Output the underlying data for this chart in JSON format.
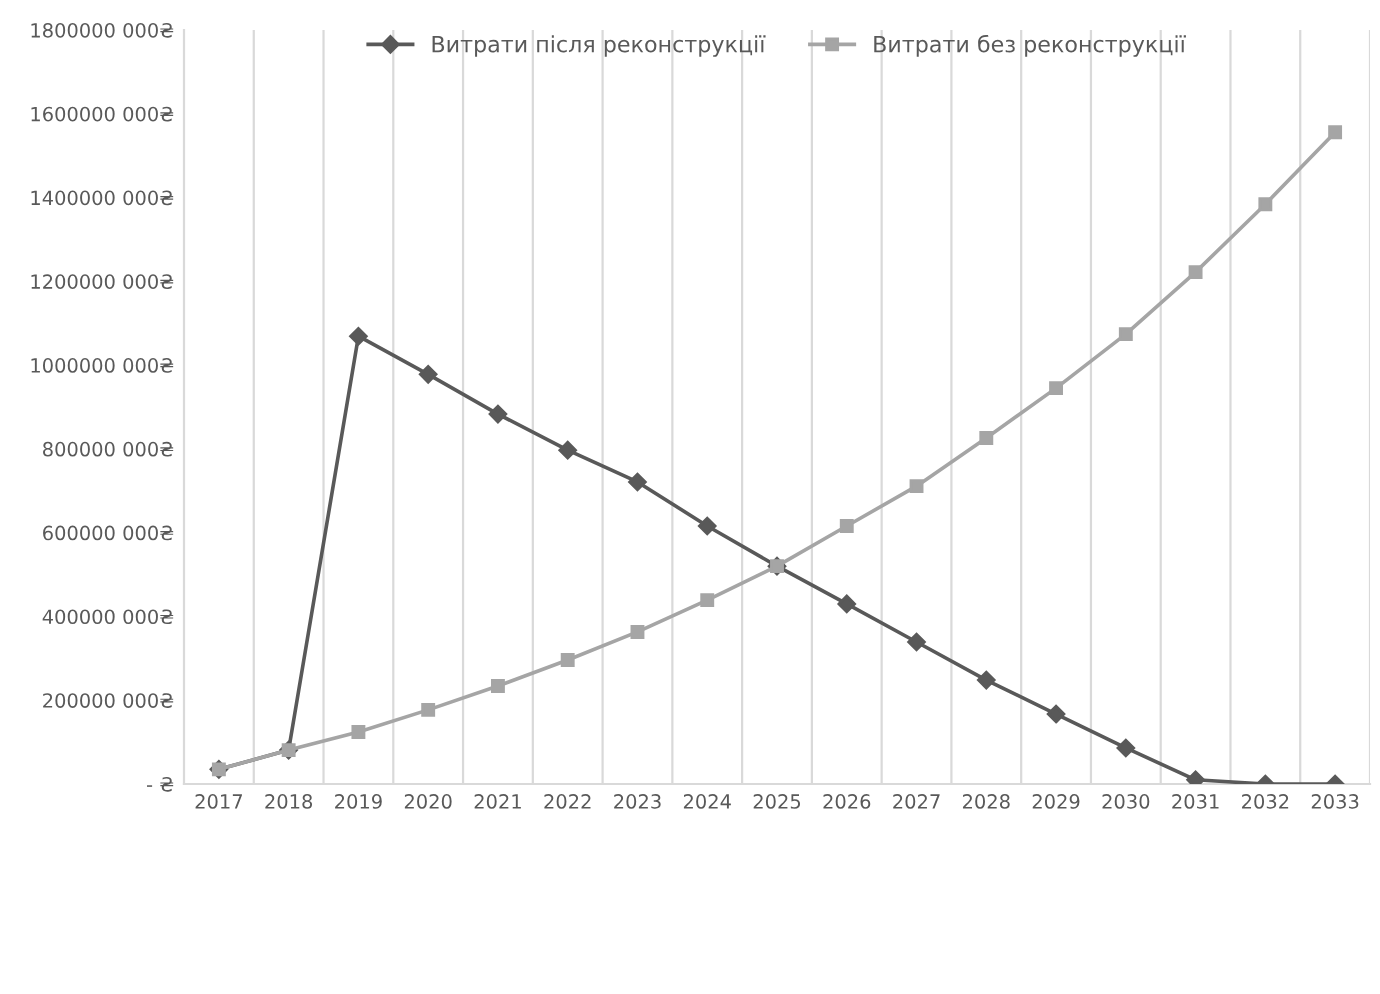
{
  "chart_data": {
    "type": "line",
    "categories": [
      "2017",
      "2018",
      "2019",
      "2020",
      "2021",
      "2022",
      "2023",
      "2024",
      "2025",
      "2026",
      "2027",
      "2028",
      "2029",
      "2030",
      "2031",
      "2032",
      "2033"
    ],
    "series": [
      {
        "name": "Витрати після реконструкції",
        "color": "#595959",
        "marker": "diamond",
        "values": [
          35000000,
          81000000,
          1069000000,
          978000000,
          883000000,
          797000000,
          721000000,
          616000000,
          520000000,
          430000000,
          339000000,
          248000000,
          167000000,
          86000000,
          10000000,
          0,
          0
        ]
      },
      {
        "name": "Витрати без реконструкції",
        "color": "#a5a5a5",
        "marker": "square",
        "values": [
          35000000,
          81000000,
          124000000,
          177000000,
          234000000,
          296000000,
          363000000,
          439000000,
          520000000,
          616000000,
          711000000,
          826000000,
          945000000,
          1074000000,
          1222000000,
          1384000000,
          1556000000
        ]
      }
    ],
    "ylim": [
      0,
      1800000000
    ],
    "yticks": [
      {
        "value": 0,
        "label": " - ₴"
      },
      {
        "value": 200000000,
        "label": "200000 000₴"
      },
      {
        "value": 400000000,
        "label": "400000 000₴"
      },
      {
        "value": 600000000,
        "label": "600000 000₴"
      },
      {
        "value": 800000000,
        "label": "800000 000₴"
      },
      {
        "value": 1000000000,
        "label": "1000000 000₴"
      },
      {
        "value": 1200000000,
        "label": "1200000 000₴"
      },
      {
        "value": 1400000000,
        "label": "1400000 000₴"
      },
      {
        "value": 1600000000,
        "label": "1600000 000₴"
      },
      {
        "value": 1800000000,
        "label": "1800000 000₴"
      }
    ],
    "grid": "x",
    "legend": "top",
    "line_style": "solid"
  }
}
